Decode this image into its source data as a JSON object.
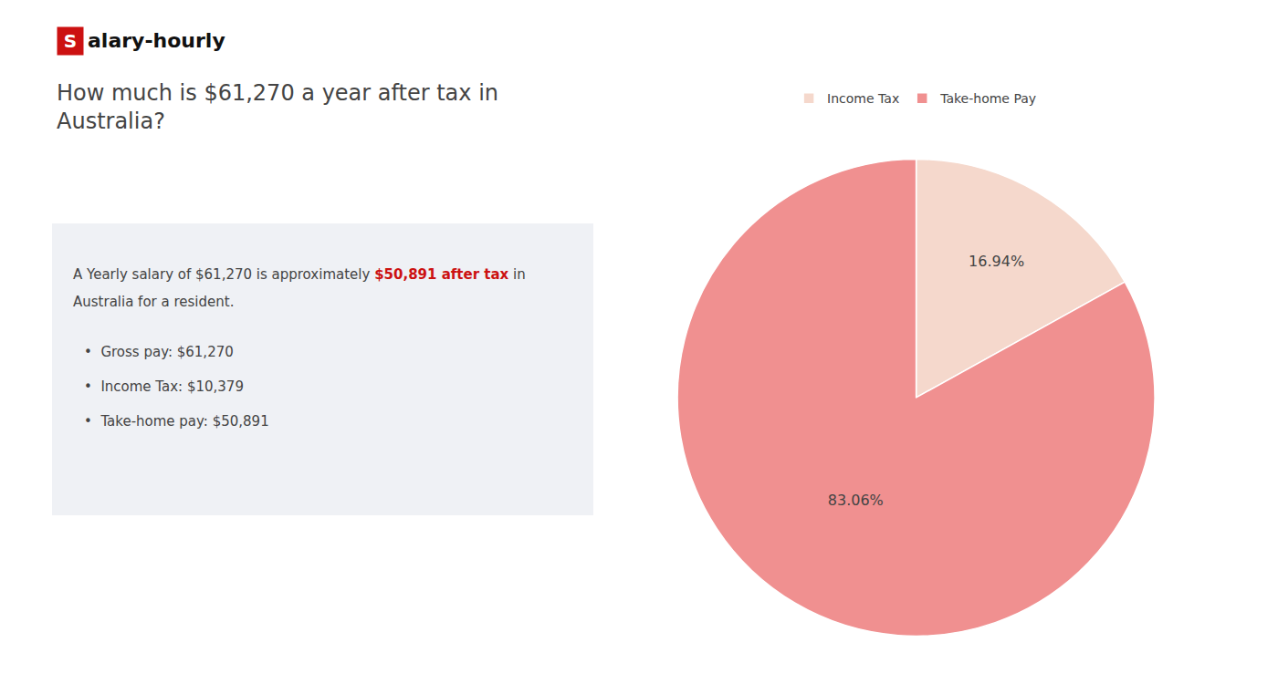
{
  "chart_data": {
    "type": "pie",
    "title": "How much is $61,270 a year after tax in\nAustralia?",
    "categories": [
      "Income Tax",
      "Take-home Pay"
    ],
    "values": [
      16.94,
      83.06
    ],
    "value_labels": [
      "16.94%",
      "83.06%"
    ],
    "colors": [
      "#f5d8cc",
      "#f09090"
    ],
    "data_labels": true,
    "legend": "top",
    "annotations": [
      {
        "text": "S",
        "color": "#cc1111"
      },
      {
        "text": "alary-hourly"
      },
      {
        "text": "A Yearly salary of $61,270 is approximately "
      },
      {
        "text": "$50,891 after tax",
        "color": "#cc1111"
      },
      {
        "text": " in"
      },
      {
        "text": "Australia for a resident."
      },
      {
        "text": "•  Gross pay: $61,270"
      },
      {
        "text": "•  Income Tax: $10,379"
      },
      {
        "text": "•  Take-home pay: $50,891"
      }
    ]
  }
}
